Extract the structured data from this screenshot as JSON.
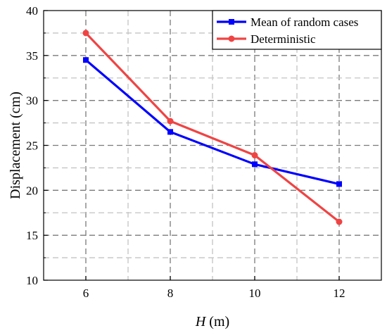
{
  "chart_data": {
    "type": "line",
    "x": [
      6,
      8,
      10,
      12
    ],
    "xlim": [
      5,
      13
    ],
    "ylim": [
      10,
      40
    ],
    "x_ticks": [
      6,
      8,
      10,
      12
    ],
    "y_ticks": [
      10,
      15,
      20,
      25,
      30,
      35,
      40
    ],
    "x_tick_labels": [
      "6",
      "8",
      "10",
      "12"
    ],
    "y_tick_labels": [
      "10",
      "15",
      "20",
      "25",
      "30",
      "35",
      "40"
    ],
    "xlabel_italic": "H",
    "xlabel_unit": " (m)",
    "ylabel": "Displacement (cm)",
    "grid": true,
    "legend_position": "top-right",
    "series": [
      {
        "name": "Mean of random cases",
        "values": [
          34.5,
          26.5,
          22.9,
          20.7
        ],
        "color": "#0000ff",
        "marker": "square"
      },
      {
        "name": "Deterministic",
        "values": [
          37.5,
          27.7,
          23.9,
          16.5
        ],
        "color": "#ef4444",
        "marker": "circle"
      }
    ]
  }
}
